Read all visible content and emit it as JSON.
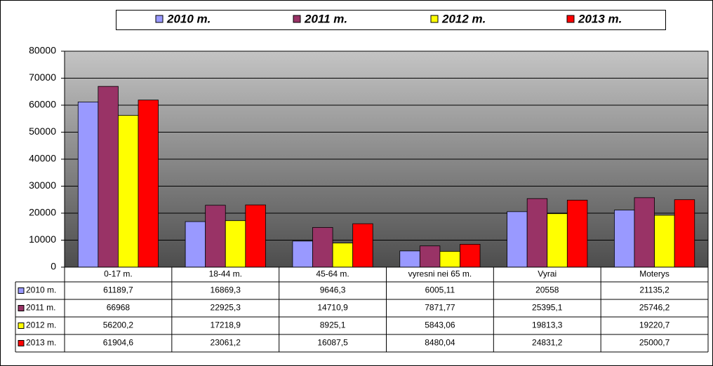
{
  "chart_data": {
    "type": "bar",
    "categories": [
      "0-17 m.",
      "18-44 m.",
      "45-64 m.",
      "vyresni nei 65 m.",
      "Vyrai",
      "Moterys"
    ],
    "series": [
      {
        "name": "2010 m.",
        "color": "#9999ff",
        "values": [
          61189.7,
          16869.3,
          9646.3,
          6005.11,
          20558,
          21135.2
        ],
        "value_labels": [
          "61189,7",
          "16869,3",
          "9646,3",
          "6005,11",
          "20558",
          "21135,2"
        ]
      },
      {
        "name": "2011 m.",
        "color": "#993366",
        "values": [
          66968,
          22925.3,
          14710.9,
          7871.77,
          25395.1,
          25746.2
        ],
        "value_labels": [
          "66968",
          "22925,3",
          "14710,9",
          "7871,77",
          "25395,1",
          "25746,2"
        ]
      },
      {
        "name": "2012 m.",
        "color": "#ffff00",
        "values": [
          56200.2,
          17218.9,
          8925.1,
          5843.06,
          19813.3,
          19220.7
        ],
        "value_labels": [
          "56200,2",
          "17218,9",
          "8925,1",
          "5843,06",
          "19813,3",
          "19220,7"
        ]
      },
      {
        "name": "2013 m.",
        "color": "#ff0000",
        "values": [
          61904.6,
          23061.2,
          16087.5,
          8480.04,
          24831.2,
          25000.7
        ],
        "value_labels": [
          "61904,6",
          "23061,2",
          "16087,5",
          "8480,04",
          "24831,2",
          "25000,7"
        ]
      }
    ],
    "ylim": [
      0,
      80000
    ],
    "yticks": [
      0,
      10000,
      20000,
      30000,
      40000,
      50000,
      60000,
      70000,
      80000
    ],
    "grid": true,
    "legend": "top",
    "data_table": true
  }
}
